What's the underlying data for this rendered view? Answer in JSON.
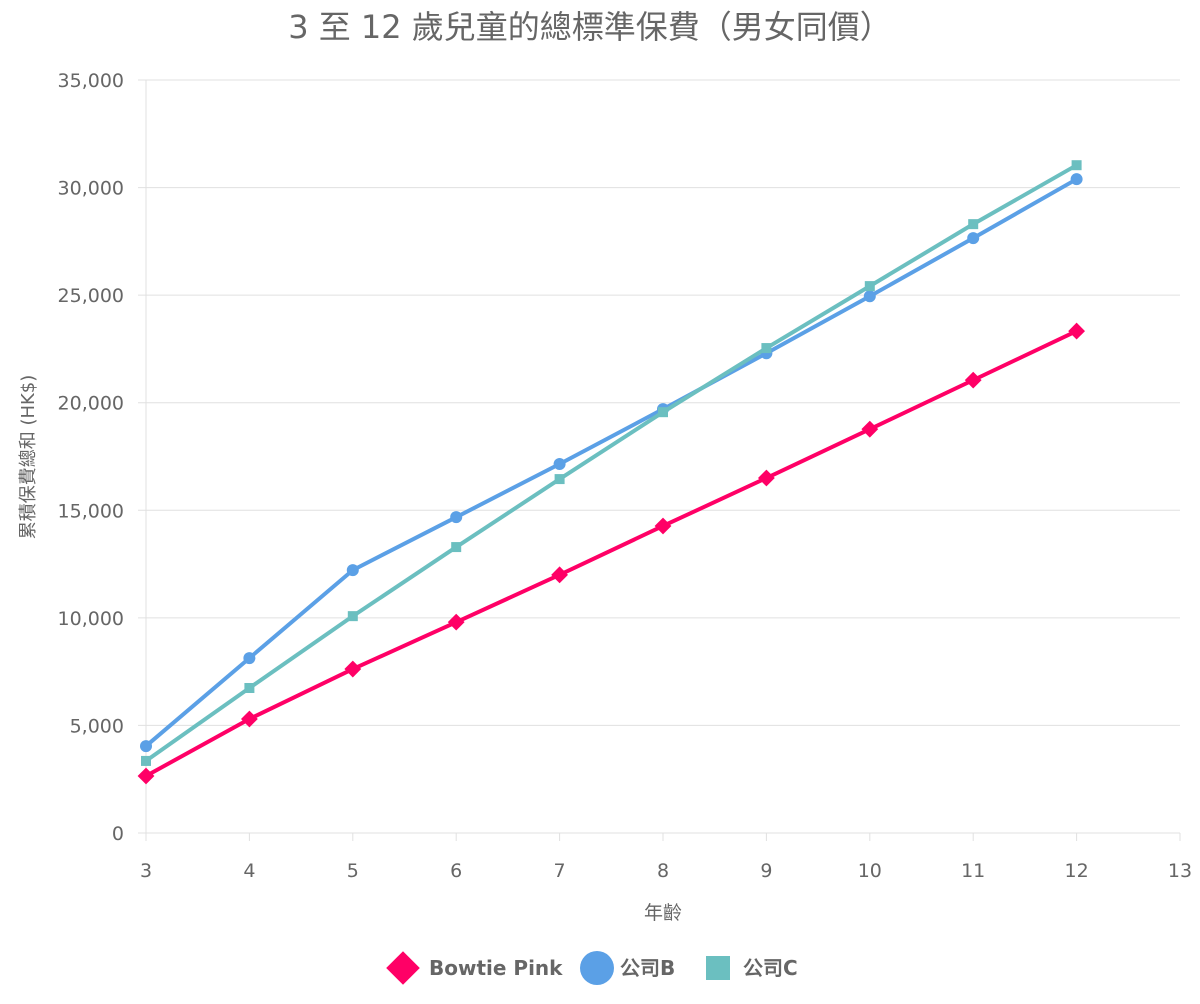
{
  "chart_data": {
    "type": "line",
    "title": "3 至 12 歲兒童的總標準保費（男女同價）",
    "xlabel": "年齡",
    "ylabel": "累積保費總和 (HK$)",
    "xlim": [
      3,
      13
    ],
    "ylim": [
      0,
      35000
    ],
    "x_ticks": [
      "3",
      "4",
      "5",
      "6",
      "7",
      "8",
      "9",
      "10",
      "11",
      "12",
      "13"
    ],
    "y_ticks": [
      "0",
      "5,000",
      "10,000",
      "15,000",
      "20,000",
      "25,000",
      "30,000",
      "35,000"
    ],
    "grid": "horizontal",
    "legend": "bottom",
    "x": [
      3,
      4,
      5,
      6,
      7,
      8,
      9,
      10,
      11,
      12
    ],
    "series": [
      {
        "name": "Bowtie Pink",
        "color": "#ff0066",
        "marker": "diamond",
        "values": [
          2650,
          5300,
          7620,
          9800,
          12000,
          14270,
          16500,
          18770,
          21050,
          23330
        ]
      },
      {
        "name": "公司B",
        "color": "#5ba0e6",
        "marker": "circle",
        "values": [
          4040,
          8130,
          12220,
          14680,
          17150,
          19700,
          22300,
          24950,
          27650,
          30390
        ]
      },
      {
        "name": "公司C",
        "color": "#6bbfc0",
        "marker": "square",
        "values": [
          3350,
          6740,
          10080,
          13290,
          16450,
          19560,
          22540,
          25420,
          28300,
          31040
        ]
      }
    ]
  }
}
